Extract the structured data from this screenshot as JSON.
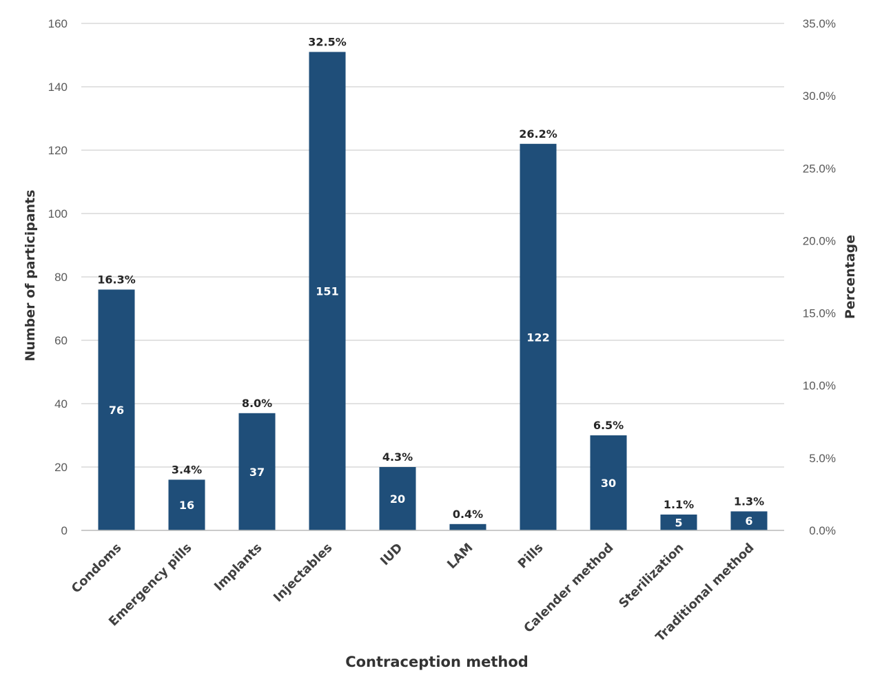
{
  "chart_data": {
    "type": "bar",
    "categories": [
      "Condoms",
      "Emergency pills",
      "Implants",
      "Injectables",
      "IUD",
      "LAM",
      "Pills",
      "Calender method",
      "Sterilization",
      "Traditional method"
    ],
    "values": [
      76,
      16,
      37,
      151,
      20,
      2,
      122,
      30,
      5,
      6
    ],
    "value_labels": [
      "76",
      "16",
      "37",
      "151",
      "20",
      "",
      "122",
      "30",
      "5",
      "6"
    ],
    "percent_labels": [
      "16.3%",
      "3.4%",
      "8.0%",
      "32.5%",
      "4.3%",
      "0.4%",
      "26.2%",
      "6.5%",
      "1.1%",
      "1.3%"
    ],
    "xlabel": "Contraception method",
    "ylabel": "Number of participants",
    "y2label": "Percentage",
    "ylim": [
      0,
      160
    ],
    "yticks": [
      "0",
      "20",
      "40",
      "60",
      "80",
      "100",
      "120",
      "140",
      "160"
    ],
    "y2lim": [
      0,
      35
    ],
    "y2ticks": [
      "0.0%",
      "5.0%",
      "10.0%",
      "15.0%",
      "20.0%",
      "25.0%",
      "30.0%",
      "35.0%"
    ],
    "grid": true,
    "bar_color": "#1f4e79",
    "grid_color": "#d9d9d9"
  }
}
